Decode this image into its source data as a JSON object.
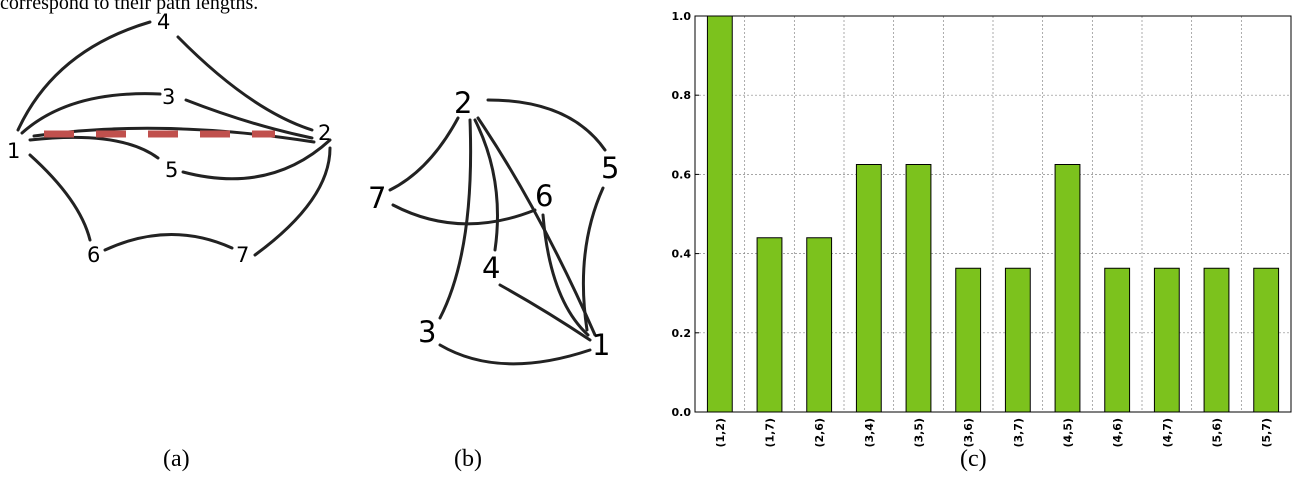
{
  "top_text": "correspond to their path lengths.",
  "captions": {
    "a": "(a)",
    "b": "(b)",
    "c": "(c)"
  },
  "graph_a": {
    "nodes": [
      "1",
      "2",
      "3",
      "4",
      "5",
      "6",
      "7"
    ],
    "dashed_edge_color": "#c0504d"
  },
  "graph_b": {
    "nodes": [
      "1",
      "2",
      "3",
      "4",
      "5",
      "6",
      "7"
    ]
  },
  "chart_data": {
    "type": "bar",
    "categories": [
      "(1,2)",
      "(1,7)",
      "(2,6)",
      "(3,4)",
      "(3,5)",
      "(3,6)",
      "(3,7)",
      "(4,5)",
      "(4,6)",
      "(4,7)",
      "(5,6)",
      "(5,7)"
    ],
    "values": [
      1.0,
      0.44,
      0.44,
      0.625,
      0.625,
      0.363,
      0.363,
      0.625,
      0.363,
      0.363,
      0.363,
      0.363
    ],
    "yticks": [
      "0.0",
      "0.2",
      "0.4",
      "0.6",
      "0.8",
      "1.0"
    ],
    "ylim": [
      0,
      1.0
    ],
    "grid": true,
    "bar_color": "#7cc21d"
  }
}
